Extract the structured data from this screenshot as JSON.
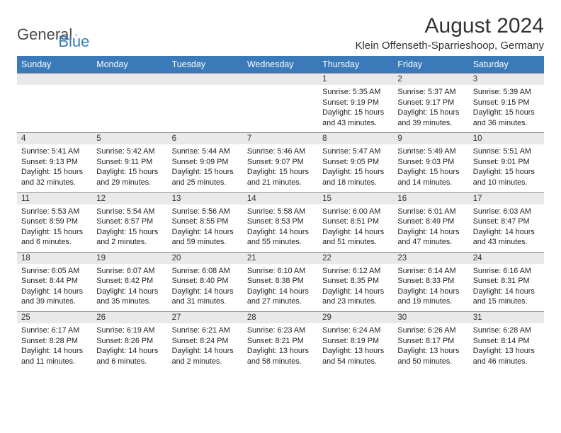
{
  "brand": {
    "part1": "General",
    "part2": "Blue"
  },
  "title": "August 2024",
  "location": "Klein Offenseth-Sparrieshoop, Germany",
  "header_color": "#3a7ab8",
  "daynum_bg": "#e9e9e9",
  "text_color": "#222222",
  "days_of_week": [
    "Sunday",
    "Monday",
    "Tuesday",
    "Wednesday",
    "Thursday",
    "Friday",
    "Saturday"
  ],
  "weeks": [
    {
      "cells": [
        {
          "n": "",
          "sr": "",
          "ss": "",
          "dl": ""
        },
        {
          "n": "",
          "sr": "",
          "ss": "",
          "dl": ""
        },
        {
          "n": "",
          "sr": "",
          "ss": "",
          "dl": ""
        },
        {
          "n": "",
          "sr": "",
          "ss": "",
          "dl": ""
        },
        {
          "n": "1",
          "sr": "Sunrise: 5:35 AM",
          "ss": "Sunset: 9:19 PM",
          "dl": "Daylight: 15 hours and 43 minutes."
        },
        {
          "n": "2",
          "sr": "Sunrise: 5:37 AM",
          "ss": "Sunset: 9:17 PM",
          "dl": "Daylight: 15 hours and 39 minutes."
        },
        {
          "n": "3",
          "sr": "Sunrise: 5:39 AM",
          "ss": "Sunset: 9:15 PM",
          "dl": "Daylight: 15 hours and 36 minutes."
        }
      ]
    },
    {
      "cells": [
        {
          "n": "4",
          "sr": "Sunrise: 5:41 AM",
          "ss": "Sunset: 9:13 PM",
          "dl": "Daylight: 15 hours and 32 minutes."
        },
        {
          "n": "5",
          "sr": "Sunrise: 5:42 AM",
          "ss": "Sunset: 9:11 PM",
          "dl": "Daylight: 15 hours and 29 minutes."
        },
        {
          "n": "6",
          "sr": "Sunrise: 5:44 AM",
          "ss": "Sunset: 9:09 PM",
          "dl": "Daylight: 15 hours and 25 minutes."
        },
        {
          "n": "7",
          "sr": "Sunrise: 5:46 AM",
          "ss": "Sunset: 9:07 PM",
          "dl": "Daylight: 15 hours and 21 minutes."
        },
        {
          "n": "8",
          "sr": "Sunrise: 5:47 AM",
          "ss": "Sunset: 9:05 PM",
          "dl": "Daylight: 15 hours and 18 minutes."
        },
        {
          "n": "9",
          "sr": "Sunrise: 5:49 AM",
          "ss": "Sunset: 9:03 PM",
          "dl": "Daylight: 15 hours and 14 minutes."
        },
        {
          "n": "10",
          "sr": "Sunrise: 5:51 AM",
          "ss": "Sunset: 9:01 PM",
          "dl": "Daylight: 15 hours and 10 minutes."
        }
      ]
    },
    {
      "cells": [
        {
          "n": "11",
          "sr": "Sunrise: 5:53 AM",
          "ss": "Sunset: 8:59 PM",
          "dl": "Daylight: 15 hours and 6 minutes."
        },
        {
          "n": "12",
          "sr": "Sunrise: 5:54 AM",
          "ss": "Sunset: 8:57 PM",
          "dl": "Daylight: 15 hours and 2 minutes."
        },
        {
          "n": "13",
          "sr": "Sunrise: 5:56 AM",
          "ss": "Sunset: 8:55 PM",
          "dl": "Daylight: 14 hours and 59 minutes."
        },
        {
          "n": "14",
          "sr": "Sunrise: 5:58 AM",
          "ss": "Sunset: 8:53 PM",
          "dl": "Daylight: 14 hours and 55 minutes."
        },
        {
          "n": "15",
          "sr": "Sunrise: 6:00 AM",
          "ss": "Sunset: 8:51 PM",
          "dl": "Daylight: 14 hours and 51 minutes."
        },
        {
          "n": "16",
          "sr": "Sunrise: 6:01 AM",
          "ss": "Sunset: 8:49 PM",
          "dl": "Daylight: 14 hours and 47 minutes."
        },
        {
          "n": "17",
          "sr": "Sunrise: 6:03 AM",
          "ss": "Sunset: 8:47 PM",
          "dl": "Daylight: 14 hours and 43 minutes."
        }
      ]
    },
    {
      "cells": [
        {
          "n": "18",
          "sr": "Sunrise: 6:05 AM",
          "ss": "Sunset: 8:44 PM",
          "dl": "Daylight: 14 hours and 39 minutes."
        },
        {
          "n": "19",
          "sr": "Sunrise: 6:07 AM",
          "ss": "Sunset: 8:42 PM",
          "dl": "Daylight: 14 hours and 35 minutes."
        },
        {
          "n": "20",
          "sr": "Sunrise: 6:08 AM",
          "ss": "Sunset: 8:40 PM",
          "dl": "Daylight: 14 hours and 31 minutes."
        },
        {
          "n": "21",
          "sr": "Sunrise: 6:10 AM",
          "ss": "Sunset: 8:38 PM",
          "dl": "Daylight: 14 hours and 27 minutes."
        },
        {
          "n": "22",
          "sr": "Sunrise: 6:12 AM",
          "ss": "Sunset: 8:35 PM",
          "dl": "Daylight: 14 hours and 23 minutes."
        },
        {
          "n": "23",
          "sr": "Sunrise: 6:14 AM",
          "ss": "Sunset: 8:33 PM",
          "dl": "Daylight: 14 hours and 19 minutes."
        },
        {
          "n": "24",
          "sr": "Sunrise: 6:16 AM",
          "ss": "Sunset: 8:31 PM",
          "dl": "Daylight: 14 hours and 15 minutes."
        }
      ]
    },
    {
      "cells": [
        {
          "n": "25",
          "sr": "Sunrise: 6:17 AM",
          "ss": "Sunset: 8:28 PM",
          "dl": "Daylight: 14 hours and 11 minutes."
        },
        {
          "n": "26",
          "sr": "Sunrise: 6:19 AM",
          "ss": "Sunset: 8:26 PM",
          "dl": "Daylight: 14 hours and 6 minutes."
        },
        {
          "n": "27",
          "sr": "Sunrise: 6:21 AM",
          "ss": "Sunset: 8:24 PM",
          "dl": "Daylight: 14 hours and 2 minutes."
        },
        {
          "n": "28",
          "sr": "Sunrise: 6:23 AM",
          "ss": "Sunset: 8:21 PM",
          "dl": "Daylight: 13 hours and 58 minutes."
        },
        {
          "n": "29",
          "sr": "Sunrise: 6:24 AM",
          "ss": "Sunset: 8:19 PM",
          "dl": "Daylight: 13 hours and 54 minutes."
        },
        {
          "n": "30",
          "sr": "Sunrise: 6:26 AM",
          "ss": "Sunset: 8:17 PM",
          "dl": "Daylight: 13 hours and 50 minutes."
        },
        {
          "n": "31",
          "sr": "Sunrise: 6:28 AM",
          "ss": "Sunset: 8:14 PM",
          "dl": "Daylight: 13 hours and 46 minutes."
        }
      ]
    }
  ]
}
